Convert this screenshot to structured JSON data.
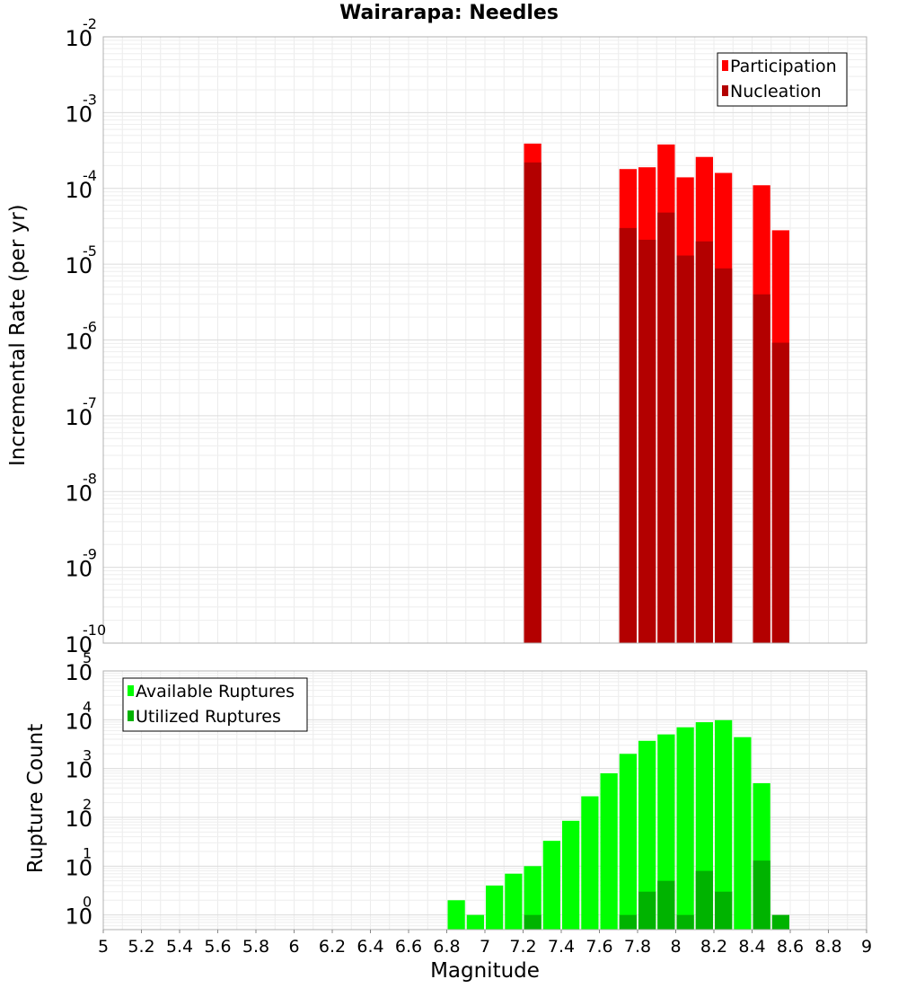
{
  "title": "Wairarapa: Needles",
  "xlabel": "Magnitude",
  "chart_data": [
    {
      "type": "bar",
      "panel": "top",
      "title": "Wairarapa: Needles",
      "ylabel": "Incremental Rate (per yr)",
      "xlabel": "",
      "yscale": "log",
      "ylim": [
        1e-10,
        0.01
      ],
      "xlim": [
        5,
        9
      ],
      "grid": true,
      "legend_position": "top-right",
      "bar_width": 0.1,
      "x_ticks": [
        "5",
        "5.2",
        "5.4",
        "5.6",
        "5.8",
        "6",
        "6.2",
        "6.4",
        "6.6",
        "6.8",
        "7",
        "7.2",
        "7.4",
        "7.6",
        "7.8",
        "8",
        "8.2",
        "8.4",
        "8.6",
        "8.8",
        "9"
      ],
      "y_ticks": [
        {
          "base": "10",
          "exp": "-10"
        },
        {
          "base": "10",
          "exp": "-9"
        },
        {
          "base": "10",
          "exp": "-8"
        },
        {
          "base": "10",
          "exp": "-7"
        },
        {
          "base": "10",
          "exp": "-6"
        },
        {
          "base": "10",
          "exp": "-5"
        },
        {
          "base": "10",
          "exp": "-4"
        },
        {
          "base": "10",
          "exp": "-3"
        },
        {
          "base": "10",
          "exp": "-2"
        }
      ],
      "series": [
        {
          "name": "Participation",
          "color": "#ff0000",
          "x": [
            7.25,
            7.75,
            7.85,
            7.95,
            8.05,
            8.15,
            8.25,
            8.45,
            8.55
          ],
          "values": [
            0.00039,
            0.00018,
            0.00019,
            0.00038,
            0.00014,
            0.00026,
            0.00016,
            0.00011,
            2.8e-05
          ]
        },
        {
          "name": "Nucleation",
          "color": "#b30000",
          "x": [
            7.25,
            7.75,
            7.85,
            7.95,
            8.05,
            8.15,
            8.25,
            8.45,
            8.55
          ],
          "values": [
            0.00022,
            3e-05,
            2.1e-05,
            4.8e-05,
            1.3e-05,
            2e-05,
            8.8e-06,
            4e-06,
            9.2e-07
          ]
        }
      ]
    },
    {
      "type": "bar",
      "panel": "bottom",
      "ylabel": "Rupture Count",
      "xlabel": "Magnitude",
      "yscale": "log",
      "ylim": [
        0.5,
        100000
      ],
      "xlim": [
        5,
        9
      ],
      "grid": true,
      "legend_position": "top-left",
      "bar_width": 0.1,
      "x_ticks": [
        "5",
        "5.2",
        "5.4",
        "5.6",
        "5.8",
        "6",
        "6.2",
        "6.4",
        "6.6",
        "6.8",
        "7",
        "7.2",
        "7.4",
        "7.6",
        "7.8",
        "8",
        "8.2",
        "8.4",
        "8.6",
        "8.8",
        "9"
      ],
      "y_ticks": [
        {
          "base": "10",
          "exp": "0"
        },
        {
          "base": "10",
          "exp": "1"
        },
        {
          "base": "10",
          "exp": "2"
        },
        {
          "base": "10",
          "exp": "3"
        },
        {
          "base": "10",
          "exp": "4"
        },
        {
          "base": "10",
          "exp": "5"
        }
      ],
      "series": [
        {
          "name": "Available Ruptures",
          "color": "#00ff00",
          "x": [
            6.85,
            6.95,
            7.05,
            7.15,
            7.25,
            7.35,
            7.45,
            7.55,
            7.65,
            7.75,
            7.85,
            7.95,
            8.05,
            8.15,
            8.25,
            8.35,
            8.45
          ],
          "values": [
            2,
            1,
            4,
            7,
            10,
            33,
            85,
            270,
            800,
            2000,
            3700,
            5000,
            7000,
            8900,
            9800,
            4400,
            500
          ]
        },
        {
          "name": "Utilized Ruptures",
          "color": "#00b300",
          "x": [
            7.25,
            7.75,
            7.85,
            7.95,
            8.05,
            8.15,
            8.25,
            8.45,
            8.55
          ],
          "values": [
            1,
            1,
            3,
            5,
            1,
            8,
            3,
            13,
            1
          ]
        }
      ]
    }
  ]
}
